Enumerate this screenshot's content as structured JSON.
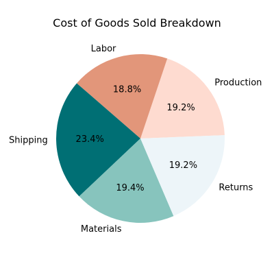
{
  "chart_data": {
    "type": "pie",
    "title": "Cost of Goods Sold Breakdown",
    "slices": [
      {
        "label": "Production",
        "value": 19.2,
        "value_label": "19.2%",
        "color": "#fedbd0"
      },
      {
        "label": "Labor",
        "value": 18.8,
        "value_label": "18.8%",
        "color": "#e2967a"
      },
      {
        "label": "Shipping",
        "value": 23.4,
        "value_label": "23.4%",
        "color": "#006f74"
      },
      {
        "label": "Materials",
        "value": 19.4,
        "value_label": "19.4%",
        "color": "#87c4bd"
      },
      {
        "label": "Returns",
        "value": 19.2,
        "value_label": "19.2%",
        "color": "#edf5f9"
      }
    ],
    "start_angle_deg": 2.3,
    "direction": "counterclockwise",
    "legend": "none"
  }
}
